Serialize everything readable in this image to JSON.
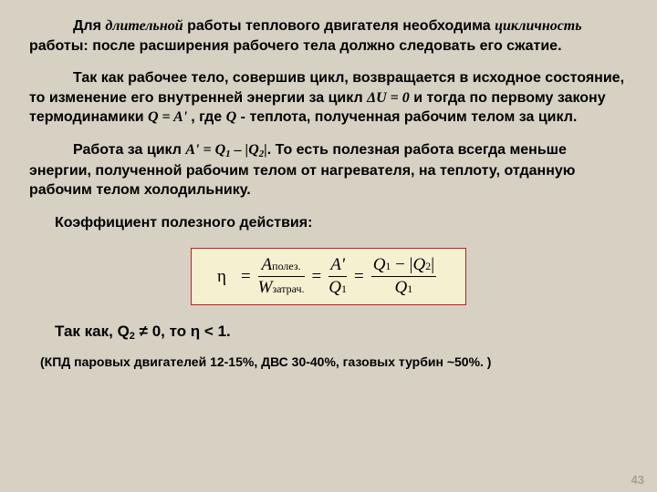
{
  "para1": {
    "lead_indent": true,
    "runs": [
      {
        "t": "Для ",
        "style": ""
      },
      {
        "t": "длительной",
        "style": "ital"
      },
      {
        "t": " работы теплового двигателя необходима ",
        "style": ""
      },
      {
        "t": "цикличность",
        "style": "ital"
      },
      {
        "t": " работы: после расширения рабочего тела должно следовать его сжатие.",
        "style": ""
      }
    ]
  },
  "para2": {
    "lead_indent": true,
    "runs": [
      {
        "t": "Так как рабочее тело, совершив цикл, возвращается в исходное состояние, то изменение его внутренней энергии за цикл ",
        "style": ""
      },
      {
        "t": "ΔU = 0",
        "style": "ital serif"
      },
      {
        "t": "  и тогда по первому закону термодинамики ",
        "style": ""
      },
      {
        "t": "Q  =  A' ",
        "style": "ital serif"
      },
      {
        "t": ", ",
        "style": ""
      },
      {
        "t": "где ",
        "style": ""
      },
      {
        "t": "Q",
        "style": "ital serif"
      },
      {
        "t": "  - теплота, полученная рабочим телом за цикл.",
        "style": ""
      }
    ]
  },
  "para3": {
    "lead_indent": true,
    "runs": [
      {
        "t": "Работа за цикл  ",
        "style": ""
      },
      {
        "t": "A'  =  Q",
        "style": "ital serif"
      },
      {
        "t": "1",
        "style": "ital serif sub"
      },
      {
        "t": " – |Q",
        "style": "ital serif"
      },
      {
        "t": "2",
        "style": "ital serif sub"
      },
      {
        "t": "|",
        "style": "ital serif"
      },
      {
        "t": ". То есть полезная работа всегда меньше энергии, полученной рабочим телом от нагревателя, на теплоту, отданную рабочим телом холодильнику.",
        "style": ""
      }
    ]
  },
  "kpd_label": "Коэффициент полезного действия:",
  "formula": {
    "border_color": "#c02020",
    "bg_color": "#f5f0d0",
    "eta": "η",
    "f1_num": "A",
    "f1_num_sub": "полез.",
    "f1_den": "W",
    "f1_den_sub": "затрач.",
    "f2_num": "A'",
    "f2_den": "Q",
    "f2_den_sub": "1",
    "f3_num_a": "Q",
    "f3_num_a_sub": "1",
    "f3_num_mid": " − |",
    "f3_num_b": "Q",
    "f3_num_b_sub": "2",
    "f3_num_end": "|",
    "f3_den": "Q",
    "f3_den_sub": "1"
  },
  "conclusion": {
    "prefix": "Так как, Q",
    "sub": "2",
    "mid": " ≠ 0, то  η < 1."
  },
  "footnote": "(КПД паровых двигателей 12-15%, ДВС 30-40%, газовых турбин ~50%. )",
  "pagenum": "43"
}
